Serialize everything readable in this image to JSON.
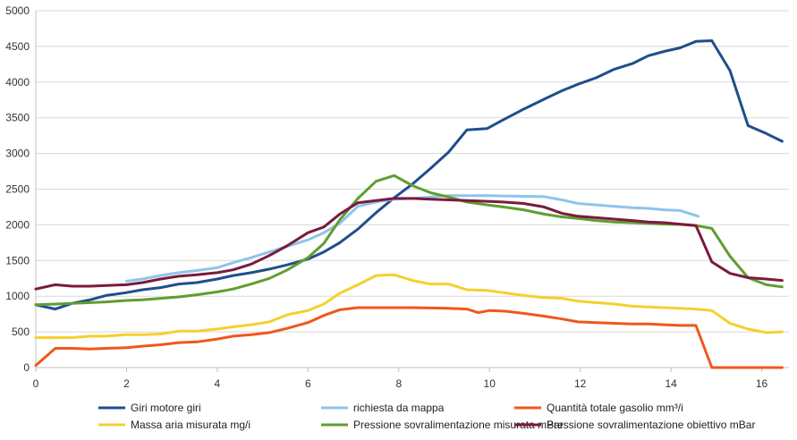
{
  "chart_data": {
    "type": "line",
    "xlim": [
      0,
      16.6
    ],
    "ylim": [
      0,
      5000
    ],
    "x_ticks": [
      "0",
      "2",
      "4",
      "6",
      "8",
      "10",
      "12",
      "14",
      "16"
    ],
    "y_ticks": [
      "0",
      "500",
      "1000",
      "1500",
      "2000",
      "2500",
      "3000",
      "3500",
      "4000",
      "4500",
      "5000"
    ],
    "grid": "horizontal",
    "legend_position": "bottom",
    "series": [
      {
        "name": "Giri motore giri",
        "color": "#1f4e8c",
        "points": [
          [
            0,
            880
          ],
          [
            0.43,
            820
          ],
          [
            0.8,
            900
          ],
          [
            1.2,
            950
          ],
          [
            1.55,
            1010
          ],
          [
            2,
            1050
          ],
          [
            2.35,
            1090
          ],
          [
            2.75,
            1120
          ],
          [
            3.15,
            1170
          ],
          [
            3.55,
            1190
          ],
          [
            4,
            1240
          ],
          [
            4.35,
            1290
          ],
          [
            4.75,
            1330
          ],
          [
            5.15,
            1380
          ],
          [
            5.55,
            1440
          ],
          [
            6,
            1520
          ],
          [
            6.35,
            1620
          ],
          [
            6.7,
            1750
          ],
          [
            7.1,
            1940
          ],
          [
            7.5,
            2170
          ],
          [
            7.9,
            2380
          ],
          [
            8.3,
            2570
          ],
          [
            8.7,
            2790
          ],
          [
            9.1,
            3020
          ],
          [
            9.5,
            3330
          ],
          [
            9.95,
            3350
          ],
          [
            10.3,
            3470
          ],
          [
            10.75,
            3620
          ],
          [
            11.2,
            3760
          ],
          [
            11.6,
            3880
          ],
          [
            11.95,
            3970
          ],
          [
            12.35,
            4060
          ],
          [
            12.75,
            4180
          ],
          [
            13.15,
            4260
          ],
          [
            13.5,
            4370
          ],
          [
            13.85,
            4430
          ],
          [
            14.2,
            4480
          ],
          [
            14.55,
            4570
          ],
          [
            14.9,
            4580
          ],
          [
            15.3,
            4160
          ],
          [
            15.7,
            3390
          ],
          [
            16.1,
            3280
          ],
          [
            16.45,
            3170
          ]
        ]
      },
      {
        "name": "richiesta da mappa",
        "color": "#8fc4ea",
        "points": [
          [
            2,
            1210
          ],
          [
            2.35,
            1240
          ],
          [
            2.75,
            1290
          ],
          [
            3.15,
            1330
          ],
          [
            3.55,
            1360
          ],
          [
            4,
            1400
          ],
          [
            4.35,
            1470
          ],
          [
            4.75,
            1540
          ],
          [
            5.15,
            1620
          ],
          [
            5.55,
            1700
          ],
          [
            6,
            1790
          ],
          [
            6.35,
            1890
          ],
          [
            6.7,
            2020
          ],
          [
            7.1,
            2260
          ],
          [
            7.5,
            2320
          ],
          [
            7.9,
            2360
          ],
          [
            8.3,
            2370
          ],
          [
            8.7,
            2390
          ],
          [
            9.1,
            2410
          ],
          [
            9.5,
            2410
          ],
          [
            9.95,
            2410
          ],
          [
            10.3,
            2405
          ],
          [
            10.75,
            2400
          ],
          [
            11.2,
            2395
          ],
          [
            11.6,
            2350
          ],
          [
            11.95,
            2300
          ],
          [
            12.35,
            2280
          ],
          [
            12.75,
            2260
          ],
          [
            13.15,
            2240
          ],
          [
            13.5,
            2230
          ],
          [
            13.85,
            2210
          ],
          [
            14.2,
            2200
          ],
          [
            14.6,
            2120
          ]
        ]
      },
      {
        "name": "Quantità totale gasolio mm³/i",
        "color": "#f0571e",
        "points": [
          [
            0,
            30
          ],
          [
            0.43,
            270
          ],
          [
            0.8,
            270
          ],
          [
            1.2,
            260
          ],
          [
            1.55,
            270
          ],
          [
            2,
            280
          ],
          [
            2.35,
            300
          ],
          [
            2.75,
            320
          ],
          [
            3.15,
            350
          ],
          [
            3.55,
            360
          ],
          [
            4,
            400
          ],
          [
            4.35,
            440
          ],
          [
            4.75,
            460
          ],
          [
            5.15,
            490
          ],
          [
            5.55,
            550
          ],
          [
            6,
            630
          ],
          [
            6.35,
            730
          ],
          [
            6.7,
            810
          ],
          [
            7.1,
            840
          ],
          [
            7.5,
            840
          ],
          [
            7.9,
            840
          ],
          [
            8.3,
            840
          ],
          [
            8.7,
            835
          ],
          [
            9.1,
            830
          ],
          [
            9.5,
            820
          ],
          [
            9.75,
            770
          ],
          [
            10,
            800
          ],
          [
            10.35,
            790
          ],
          [
            10.75,
            760
          ],
          [
            11.2,
            720
          ],
          [
            11.6,
            680
          ],
          [
            11.95,
            640
          ],
          [
            12.35,
            630
          ],
          [
            12.75,
            620
          ],
          [
            13.15,
            610
          ],
          [
            13.5,
            610
          ],
          [
            13.85,
            600
          ],
          [
            14.2,
            590
          ],
          [
            14.55,
            590
          ],
          [
            14.9,
            0
          ],
          [
            15.3,
            0
          ],
          [
            15.7,
            0
          ],
          [
            16.1,
            0
          ],
          [
            16.45,
            0
          ]
        ]
      },
      {
        "name": "Massa aria misurata mg/i",
        "color": "#f5d02e",
        "points": [
          [
            0,
            420
          ],
          [
            0.43,
            420
          ],
          [
            0.8,
            420
          ],
          [
            1.2,
            440
          ],
          [
            1.55,
            440
          ],
          [
            2,
            460
          ],
          [
            2.35,
            460
          ],
          [
            2.75,
            470
          ],
          [
            3.15,
            510
          ],
          [
            3.55,
            510
          ],
          [
            4,
            540
          ],
          [
            4.35,
            570
          ],
          [
            4.75,
            600
          ],
          [
            5.15,
            640
          ],
          [
            5.55,
            740
          ],
          [
            6,
            800
          ],
          [
            6.35,
            890
          ],
          [
            6.7,
            1040
          ],
          [
            7.1,
            1160
          ],
          [
            7.5,
            1290
          ],
          [
            7.9,
            1300
          ],
          [
            8.3,
            1220
          ],
          [
            8.7,
            1170
          ],
          [
            9.1,
            1170
          ],
          [
            9.5,
            1090
          ],
          [
            9.95,
            1080
          ],
          [
            10.3,
            1050
          ],
          [
            10.75,
            1010
          ],
          [
            11.2,
            980
          ],
          [
            11.6,
            970
          ],
          [
            11.95,
            930
          ],
          [
            12.35,
            910
          ],
          [
            12.75,
            890
          ],
          [
            13.15,
            860
          ],
          [
            13.5,
            850
          ],
          [
            13.85,
            840
          ],
          [
            14.2,
            830
          ],
          [
            14.55,
            820
          ],
          [
            14.9,
            800
          ],
          [
            15.3,
            620
          ],
          [
            15.7,
            540
          ],
          [
            16.1,
            490
          ],
          [
            16.45,
            500
          ]
        ]
      },
      {
        "name": "Pressione sovralimentazione misurata mBar",
        "color": "#5f9e2f",
        "points": [
          [
            0,
            880
          ],
          [
            0.43,
            890
          ],
          [
            0.8,
            900
          ],
          [
            1.2,
            910
          ],
          [
            1.55,
            920
          ],
          [
            2,
            940
          ],
          [
            2.35,
            950
          ],
          [
            2.75,
            970
          ],
          [
            3.15,
            990
          ],
          [
            3.55,
            1020
          ],
          [
            4,
            1060
          ],
          [
            4.35,
            1100
          ],
          [
            4.75,
            1170
          ],
          [
            5.15,
            1250
          ],
          [
            5.55,
            1370
          ],
          [
            6,
            1540
          ],
          [
            6.35,
            1740
          ],
          [
            6.7,
            2070
          ],
          [
            7.1,
            2370
          ],
          [
            7.5,
            2610
          ],
          [
            7.9,
            2690
          ],
          [
            8.3,
            2550
          ],
          [
            8.7,
            2450
          ],
          [
            9.1,
            2390
          ],
          [
            9.5,
            2320
          ],
          [
            9.95,
            2280
          ],
          [
            10.3,
            2250
          ],
          [
            10.75,
            2210
          ],
          [
            11.2,
            2150
          ],
          [
            11.6,
            2110
          ],
          [
            11.95,
            2090
          ],
          [
            12.35,
            2060
          ],
          [
            12.75,
            2040
          ],
          [
            13.15,
            2030
          ],
          [
            13.5,
            2020
          ],
          [
            13.85,
            2010
          ],
          [
            14.2,
            2005
          ],
          [
            14.55,
            1990
          ],
          [
            14.9,
            1950
          ],
          [
            15.3,
            1560
          ],
          [
            15.7,
            1260
          ],
          [
            16.1,
            1160
          ],
          [
            16.45,
            1130
          ]
        ]
      },
      {
        "name": "Pressione sovralimentazione obiettivo mBar",
        "color": "#7b1a3e",
        "points": [
          [
            0,
            1100
          ],
          [
            0.43,
            1160
          ],
          [
            0.8,
            1140
          ],
          [
            1.2,
            1140
          ],
          [
            1.55,
            1150
          ],
          [
            2,
            1160
          ],
          [
            2.35,
            1190
          ],
          [
            2.75,
            1240
          ],
          [
            3.15,
            1280
          ],
          [
            3.55,
            1300
          ],
          [
            4,
            1330
          ],
          [
            4.35,
            1370
          ],
          [
            4.75,
            1450
          ],
          [
            5.15,
            1570
          ],
          [
            5.55,
            1710
          ],
          [
            6,
            1890
          ],
          [
            6.35,
            1970
          ],
          [
            6.7,
            2150
          ],
          [
            7.1,
            2310
          ],
          [
            7.5,
            2340
          ],
          [
            7.9,
            2370
          ],
          [
            8.3,
            2370
          ],
          [
            8.7,
            2360
          ],
          [
            9.1,
            2350
          ],
          [
            9.5,
            2340
          ],
          [
            9.95,
            2330
          ],
          [
            10.3,
            2320
          ],
          [
            10.75,
            2300
          ],
          [
            11.2,
            2250
          ],
          [
            11.6,
            2160
          ],
          [
            11.95,
            2120
          ],
          [
            12.35,
            2100
          ],
          [
            12.75,
            2080
          ],
          [
            13.15,
            2060
          ],
          [
            13.5,
            2040
          ],
          [
            13.85,
            2030
          ],
          [
            14.2,
            2010
          ],
          [
            14.55,
            1990
          ],
          [
            14.9,
            1480
          ],
          [
            15.3,
            1320
          ],
          [
            15.7,
            1260
          ],
          [
            16.1,
            1240
          ],
          [
            16.45,
            1220
          ]
        ]
      }
    ]
  }
}
